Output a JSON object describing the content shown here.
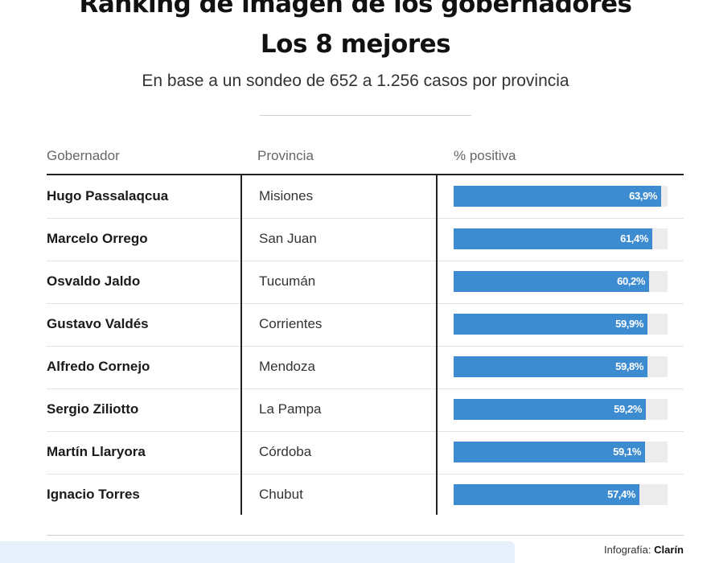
{
  "header": {
    "title_line1": "Ranking de imagen de los gobernadores",
    "title_line2": "Los 8 mejores",
    "subtitle": "En base a un sondeo de 652 a 1.256 casos por provincia"
  },
  "table": {
    "columns": [
      "Gobernador",
      "Provincia",
      "% positiva"
    ]
  },
  "chart_data": {
    "type": "table",
    "columns": [
      "Gobernador",
      "Provincia",
      "% positiva"
    ],
    "xlim": [
      0,
      66
    ],
    "rows": [
      {
        "name": "Hugo Passalaqcua",
        "province": "Misiones",
        "value": 63.9,
        "label": "63,9%"
      },
      {
        "name": "Marcelo Orrego",
        "province": "San Juan",
        "value": 61.4,
        "label": "61,4%"
      },
      {
        "name": "Osvaldo Jaldo",
        "province": "Tucumán",
        "value": 60.2,
        "label": "60,2%"
      },
      {
        "name": "Gustavo Valdés",
        "province": "Corrientes",
        "value": 59.9,
        "label": "59,9%"
      },
      {
        "name": "Alfredo Cornejo",
        "province": "Mendoza",
        "value": 59.8,
        "label": "59,8%"
      },
      {
        "name": "Sergio Ziliotto",
        "province": "La Pampa",
        "value": 59.2,
        "label": "59,2%"
      },
      {
        "name": "Martín Llaryora",
        "province": "Córdoba",
        "value": 59.1,
        "label": "59,1%"
      },
      {
        "name": "Ignacio Torres",
        "province": "Chubut",
        "value": 57.4,
        "label": "57,4%"
      }
    ],
    "bar_color": "#3d8bd0",
    "track_color": "#ececec"
  },
  "footer": {
    "credit_prefix": "Infografía:",
    "credit_brand": "Clarín"
  }
}
